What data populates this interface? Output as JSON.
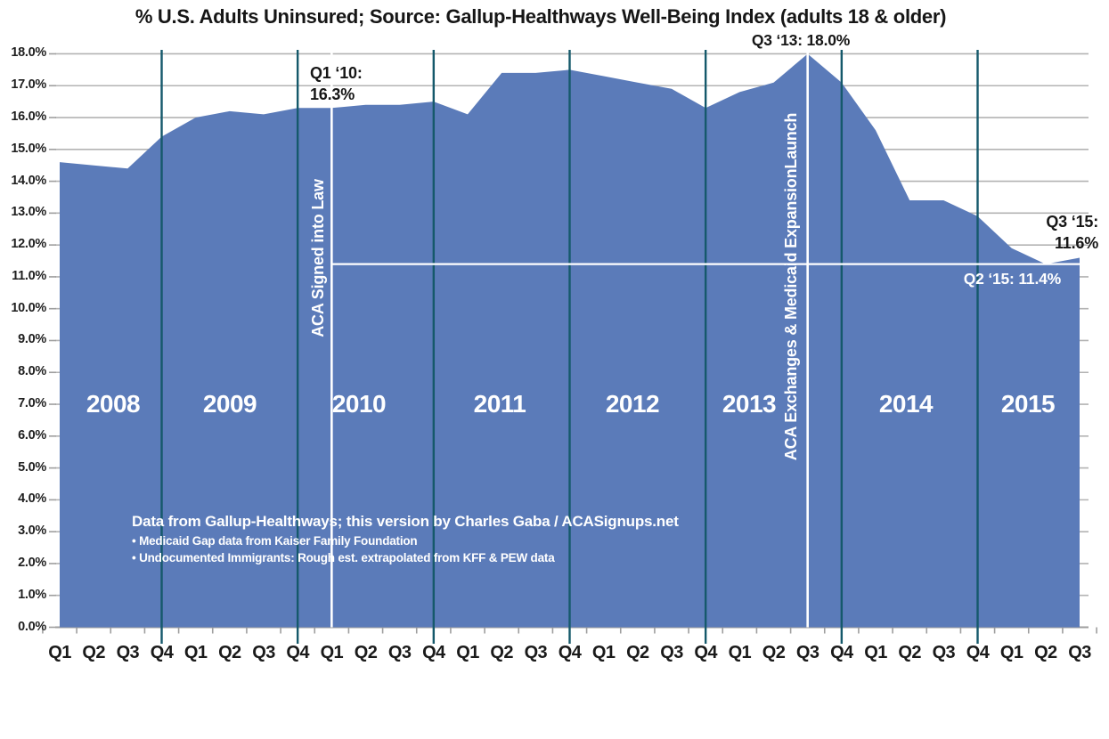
{
  "title": "% U.S. Adults Uninsured; Source: Gallup-Healthways Well-Being Index (adults 18 & older)",
  "chart_data": {
    "type": "area",
    "title": "% U.S. Adults Uninsured; Source: Gallup-Healthways Well-Being Index (adults 18 & older)",
    "categories": [
      "2008 Q1",
      "2008 Q2",
      "2008 Q3",
      "2008 Q4",
      "2009 Q1",
      "2009 Q2",
      "2009 Q3",
      "2009 Q4",
      "2010 Q1",
      "2010 Q2",
      "2010 Q3",
      "2010 Q4",
      "2011 Q1",
      "2011 Q2",
      "2011 Q3",
      "2011 Q4",
      "2012 Q1",
      "2012 Q2",
      "2012 Q3",
      "2012 Q4",
      "2013 Q1",
      "2013 Q2",
      "2013 Q3",
      "2013 Q4",
      "2014 Q1",
      "2014 Q2",
      "2014 Q3",
      "2014 Q4",
      "2015 Q1",
      "2015 Q2",
      "2015 Q3"
    ],
    "x_labels": [
      "Q1",
      "Q2",
      "Q3",
      "Q4",
      "Q1",
      "Q2",
      "Q3",
      "Q4",
      "Q1",
      "Q2",
      "Q3",
      "Q4",
      "Q1",
      "Q2",
      "Q3",
      "Q4",
      "Q1",
      "Q2",
      "Q3",
      "Q4",
      "Q1",
      "Q2",
      "Q3",
      "Q4",
      "Q1",
      "Q2",
      "Q3",
      "Q4",
      "Q1",
      "Q2",
      "Q3"
    ],
    "series": [
      {
        "name": "% U.S. Adults Uninsured",
        "values": [
          14.6,
          14.5,
          14.4,
          15.4,
          16.0,
          16.2,
          16.1,
          16.3,
          16.3,
          16.4,
          16.4,
          16.5,
          16.1,
          17.4,
          17.4,
          17.5,
          17.3,
          17.1,
          16.9,
          16.3,
          16.8,
          17.1,
          18.0,
          17.1,
          15.6,
          13.4,
          13.4,
          12.9,
          11.9,
          11.4,
          11.6
        ]
      }
    ],
    "year_labels": [
      "2008",
      "2009",
      "2010",
      "2011",
      "2012",
      "2013",
      "2014",
      "2015"
    ],
    "y_ticks": [
      "0.0%",
      "1.0%",
      "2.0%",
      "3.0%",
      "4.0%",
      "5.0%",
      "6.0%",
      "7.0%",
      "8.0%",
      "9.0%",
      "10.0%",
      "11.0%",
      "12.0%",
      "13.0%",
      "14.0%",
      "15.0%",
      "16.0%",
      "17.0%",
      "18.0%"
    ],
    "ylim": [
      0,
      18
    ],
    "y_tick_step": 1,
    "grid": "horizontal-major, vertical dark line at every Q4",
    "reference_line_value": 11.4,
    "annotated_points": [
      {
        "category": "2010 Q1",
        "value": 16.3
      },
      {
        "category": "2013 Q3",
        "value": 18.0
      },
      {
        "category": "2015 Q2",
        "value": 11.4
      },
      {
        "category": "2015 Q3",
        "value": 11.6
      }
    ]
  },
  "annotations": {
    "q3_13": "Q3 ‘13: 18.0%",
    "q1_10": {
      "line1": "Q1 ‘10:",
      "line2": "16.3%"
    },
    "q3_15": {
      "line1": "Q3 ‘15:",
      "line2": "11.6%"
    },
    "q2_15": "Q2 ‘15: 11.4%"
  },
  "event_lines": [
    {
      "label": "ACA Signed into Law",
      "quarter_index": 8
    },
    {
      "label": "ACA Exchanges & Medicaid ExpansionLaunch",
      "quarter_index": 22
    }
  ],
  "source_note": {
    "line1": "Data from Gallup-Healthways; this version by Charles Gaba / ACASignups.net",
    "line2": "• Medicaid Gap data from Kaiser Family Foundation",
    "line3": "• Undocumented Immigrants: Rough est. extrapolated from KFF & PEW data"
  },
  "colors": {
    "area_fill": "#5b7bb9",
    "year_line": "#15596b",
    "grid_line": "#b3b3b3",
    "axis_line": "#9e9e9e",
    "event_line": "#ffffff",
    "title_text": "#161616",
    "axis_text": "#1f1f1f",
    "area_text": "#ffffff"
  }
}
